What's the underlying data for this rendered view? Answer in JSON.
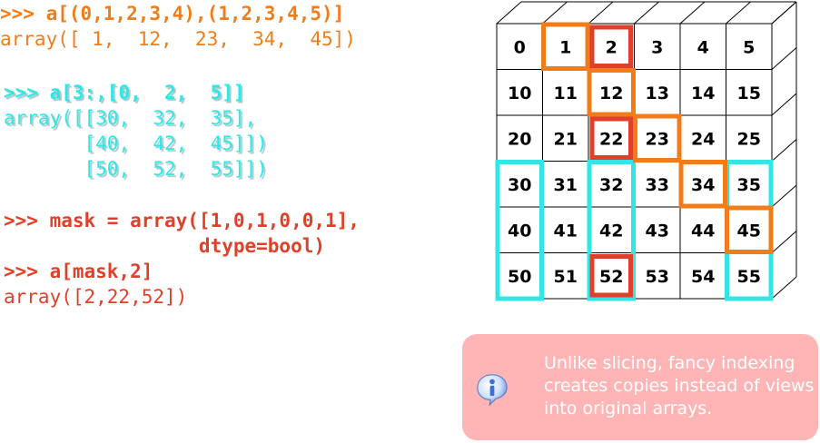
{
  "code": {
    "block1": {
      "prompt": ">>> a[(0,1,2,3,4),(1,2,3,4,5)]",
      "output": "array([ 1,  12,  23,  34,  45])"
    },
    "block2": {
      "prompt": ">>> a[3:,[0,  2,  5]]",
      "output_line1": "array([[30,  32,  35],",
      "output_line2": "       [40,  42,  45]])",
      "output_line3": "       [50,  52,  55]])"
    },
    "block3": {
      "prompt_line1": ">>> mask = array([1,0,1,0,0,1],",
      "prompt_line2": "                 dtype=bool)",
      "prompt_line3": ">>> a[mask,2]",
      "output": "array([2,22,52])"
    }
  },
  "grid": {
    "rows": [
      [
        "0",
        "1",
        "2",
        "3",
        "4",
        "5"
      ],
      [
        "10",
        "11",
        "12",
        "13",
        "14",
        "15"
      ],
      [
        "20",
        "21",
        "22",
        "23",
        "24",
        "25"
      ],
      [
        "30",
        "31",
        "32",
        "33",
        "34",
        "35"
      ],
      [
        "40",
        "41",
        "42",
        "43",
        "44",
        "45"
      ],
      [
        "50",
        "51",
        "52",
        "53",
        "54",
        "55"
      ]
    ],
    "orange_cells": [
      [
        0,
        1
      ],
      [
        1,
        2
      ],
      [
        2,
        3
      ],
      [
        3,
        4
      ],
      [
        4,
        5
      ]
    ],
    "red_cells": [
      [
        0,
        2
      ],
      [
        2,
        2
      ],
      [
        5,
        2
      ]
    ],
    "cyan_columns": [
      0,
      2,
      5
    ],
    "cyan_start_row": 3,
    "colors": {
      "orange": "#f07d1a",
      "red": "#e0402a",
      "cyan": "#33e6e6"
    }
  },
  "note": {
    "text": "Unlike slicing, fancy indexing creates copies instead of views into original arrays.",
    "icon": "info-icon"
  }
}
